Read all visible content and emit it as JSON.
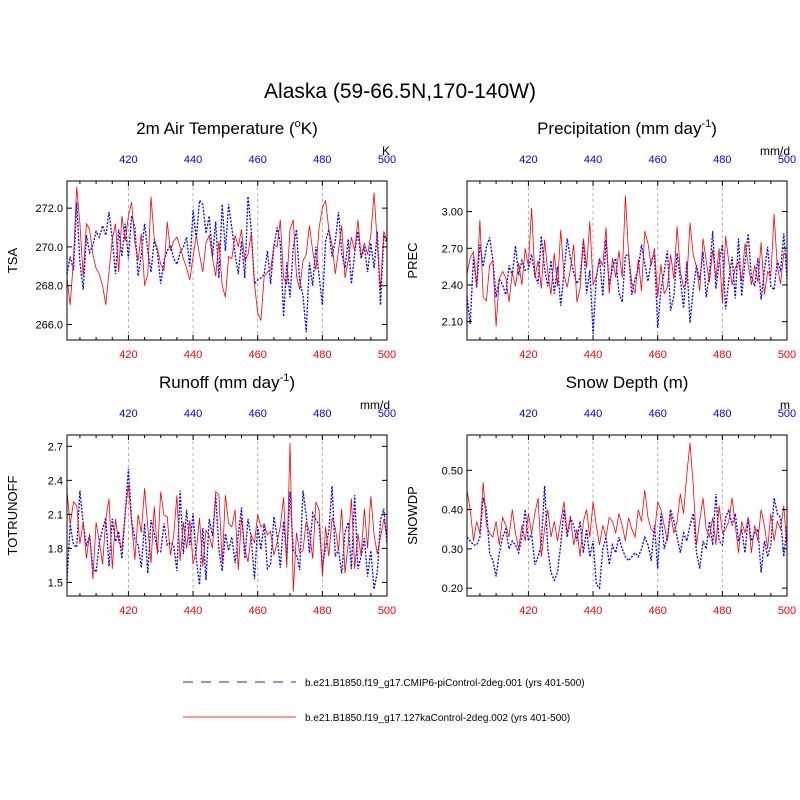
{
  "figure_title": "Alaska (59-66.5N,170-140W)",
  "colors": {
    "series_a": "#0000ff",
    "series_b": "#ff0000",
    "grid": "#a0a0a0",
    "axis": "#000000"
  },
  "legend": {
    "a": "b.e21.B1850.f19_g17.CMIP6-piControl-2deg.001 (yrs 401-500)",
    "b": "b.e21.B1850.f19_g17.127kaControl-2deg.002 (yrs 401-500)"
  },
  "chart_data": [
    {
      "type": "line",
      "title": "2m Air Temperature (",
      "title_sup": "o",
      "title_post": "K)",
      "ylabel": "TSA",
      "top_unit": "K",
      "xlim": [
        401,
        500
      ],
      "ylim": [
        265.2,
        273.4
      ],
      "yticks": [
        266.0,
        268.0,
        270.0,
        272.0
      ],
      "ytick_labels": [
        "266.0",
        "268.0",
        "270.0",
        "272.0"
      ],
      "xticks": [
        420,
        440,
        460,
        480,
        500
      ],
      "xtick_labels": [
        "420",
        "440",
        "460",
        "480",
        "500"
      ],
      "series": [
        {
          "name": "b.e21.B1850.f19_g17.CMIP6-piControl-2deg.001 (yrs 401-500)",
          "color": "#0000ff",
          "style": "dotted",
          "values": [
            268.6,
            269.5,
            268.8,
            272.3,
            269.2,
            267.8,
            270.6,
            269.7,
            270.1,
            270.8,
            270.5,
            271.1,
            270.6,
            271.8,
            270.4,
            268.6,
            270.9,
            269.5,
            271.2,
            269.4,
            271.6,
            271.0,
            268.5,
            269.6,
            271.2,
            269.8,
            268.7,
            270.4,
            269.7,
            268.1,
            269.3,
            269.8,
            270.1,
            269.4,
            269.1,
            269.7,
            270.0,
            270.5,
            269.0,
            271.9,
            270.4,
            272.4,
            272.2,
            270.7,
            271.6,
            269.5,
            271.3,
            268.4,
            272.2,
            269.8,
            272.2,
            271.0,
            269.6,
            268.6,
            270.3,
            268.4,
            272.6,
            270.9,
            268.1,
            268.3,
            268.4,
            268.6,
            269.8,
            268.1,
            270.0,
            271.0,
            270.2,
            266.4,
            269.2,
            267.4,
            270.0,
            270.9,
            268.2,
            267.5,
            265.6,
            269.2,
            268.0,
            270.0,
            268.5,
            267.0,
            270.3,
            270.9,
            269.5,
            270.3,
            271.8,
            269.7,
            268.9,
            270.4,
            268.1,
            269.7,
            270.8,
            269.4,
            270.0,
            268.7,
            270.2,
            268.9,
            270.8,
            267.0,
            270.6,
            270.2
          ]
        },
        {
          "name": "b.e21.B1850.f19_g17.127kaControl-2deg.002 (yrs 401-500)",
          "color": "#ff0000",
          "style": "solid",
          "values": [
            268.4,
            267.0,
            269.4,
            273.1,
            271.2,
            268.5,
            271.2,
            270.9,
            269.6,
            268.9,
            268.6,
            268.0,
            267.0,
            268.7,
            270.4,
            271.2,
            268.7,
            271.6,
            270.3,
            271.6,
            272.3,
            270.2,
            269.3,
            270.7,
            268.0,
            268.6,
            272.6,
            270.4,
            269.9,
            269.1,
            268.8,
            271.3,
            269.8,
            270.3,
            270.5,
            270.0,
            269.4,
            268.9,
            268.3,
            269.5,
            270.6,
            269.6,
            268.7,
            270.2,
            270.6,
            269.4,
            268.5,
            270.3,
            268.0,
            267.4,
            269.5,
            269.4,
            270.6,
            270.0,
            270.9,
            269.3,
            269.6,
            270.7,
            268.1,
            266.6,
            266.2,
            268.5,
            268.7,
            268.8,
            270.1,
            270.0,
            271.4,
            268.4,
            268.1,
            270.9,
            271.4,
            268.5,
            267.8,
            269.3,
            269.6,
            271.1,
            269.8,
            268.8,
            271.0,
            272.0,
            272.4,
            270.9,
            270.1,
            268.6,
            269.8,
            271.1,
            268.4,
            269.3,
            270.5,
            269.8,
            271.4,
            269.5,
            270.2,
            269.6,
            270.6,
            272.8,
            270.1,
            267.8,
            270.8,
            270.3
          ]
        }
      ]
    },
    {
      "type": "line",
      "title": "Precipitation (mm day",
      "title_sup": "-1",
      "title_post": ")",
      "ylabel": "PREC",
      "top_unit": "mm/d",
      "xlim": [
        401,
        500
      ],
      "ylim": [
        1.95,
        3.25
      ],
      "yticks": [
        2.1,
        2.4,
        2.7,
        3.0
      ],
      "ytick_labels": [
        "2.10",
        "2.40",
        "2.70",
        "3.00"
      ],
      "xticks": [
        420,
        440,
        460,
        480,
        500
      ],
      "xtick_labels": [
        "420",
        "440",
        "460",
        "480",
        "500"
      ],
      "series": [
        {
          "name": "b.e21.B1850.f19_g17.CMIP6-piControl-2deg.001 (yrs 401-500)",
          "color": "#0000ff",
          "style": "dotted",
          "values": [
            2.31,
            2.08,
            2.63,
            2.38,
            2.73,
            2.55,
            2.71,
            2.79,
            2.6,
            2.3,
            2.45,
            2.4,
            2.32,
            2.56,
            2.48,
            2.72,
            2.48,
            2.6,
            2.52,
            2.53,
            2.65,
            2.48,
            2.41,
            2.8,
            2.53,
            2.39,
            2.6,
            2.33,
            2.55,
            2.23,
            2.5,
            2.78,
            2.62,
            2.5,
            2.41,
            2.46,
            2.76,
            2.33,
            2.52,
            2.0,
            2.46,
            2.62,
            2.31,
            2.77,
            2.4,
            2.54,
            2.62,
            2.34,
            2.26,
            2.64,
            2.65,
            2.32,
            2.45,
            2.53,
            2.73,
            2.57,
            2.43,
            2.6,
            2.64,
            2.05,
            2.36,
            2.51,
            2.68,
            2.19,
            2.31,
            2.66,
            2.45,
            2.21,
            2.59,
            2.09,
            2.37,
            2.56,
            2.44,
            2.67,
            2.3,
            2.49,
            2.84,
            2.37,
            2.58,
            2.73,
            2.2,
            2.44,
            2.63,
            2.29,
            2.78,
            2.31,
            2.59,
            2.82,
            2.46,
            2.39,
            2.62,
            2.28,
            2.52,
            2.71,
            2.39,
            2.36,
            2.6,
            2.51,
            2.82,
            2.45
          ]
        },
        {
          "name": "b.e21.B1850.f19_g17.127kaControl-2deg.002 (yrs 401-500)",
          "color": "#ff0000",
          "style": "solid",
          "values": [
            2.49,
            2.62,
            2.67,
            2.39,
            2.93,
            2.3,
            2.27,
            2.56,
            2.6,
            2.06,
            2.45,
            2.51,
            2.46,
            2.26,
            2.5,
            2.39,
            2.58,
            2.4,
            2.7,
            2.55,
            3.03,
            2.46,
            2.6,
            2.37,
            2.77,
            2.5,
            2.32,
            2.66,
            2.39,
            2.85,
            2.48,
            2.38,
            2.53,
            2.73,
            2.26,
            2.37,
            2.78,
            2.54,
            2.92,
            2.4,
            2.47,
            2.61,
            2.56,
            2.87,
            2.33,
            2.62,
            2.46,
            2.68,
            2.46,
            3.13,
            2.65,
            2.42,
            2.33,
            2.61,
            2.35,
            2.84,
            2.74,
            2.56,
            2.7,
            2.3,
            2.57,
            2.33,
            2.38,
            2.65,
            2.45,
            2.88,
            2.51,
            2.38,
            2.43,
            2.91,
            2.64,
            2.55,
            2.35,
            2.78,
            2.6,
            2.42,
            2.69,
            2.45,
            2.7,
            2.25,
            2.8,
            2.59,
            2.4,
            2.54,
            2.59,
            2.43,
            2.74,
            2.57,
            2.4,
            2.56,
            2.42,
            2.75,
            2.32,
            2.51,
            2.47,
            2.98,
            2.55,
            2.41,
            2.66,
            2.63
          ]
        }
      ]
    },
    {
      "type": "line",
      "title": "Runoff (mm day",
      "title_sup": "-1",
      "title_post": ")",
      "ylabel": "TOTRUNOFF",
      "top_unit": "mm/d",
      "xlim": [
        401,
        500
      ],
      "ylim": [
        1.38,
        2.8
      ],
      "yticks": [
        1.5,
        1.8,
        2.1,
        2.4,
        2.7
      ],
      "ytick_labels": [
        "1.5",
        "1.8",
        "2.1",
        "2.4",
        "2.7"
      ],
      "xticks": [
        420,
        440,
        460,
        480,
        500
      ],
      "xtick_labels": [
        "420",
        "440",
        "460",
        "480",
        "500"
      ],
      "series": [
        {
          "name": "b.e21.B1850.f19_g17.CMIP6-piControl-2deg.001 (yrs 401-500)",
          "color": "#0000ff",
          "style": "dotted",
          "values": [
            1.52,
            2.01,
            1.83,
            1.81,
            2.31,
            2.02,
            1.82,
            1.91,
            1.63,
            1.59,
            1.85,
            1.97,
            2.07,
            1.64,
            2.06,
            1.86,
            1.95,
            1.71,
            2.1,
            2.5,
            2.05,
            1.88,
            1.83,
            1.63,
            2.02,
            1.58,
            2.05,
            1.93,
            1.78,
            1.77,
            2.02,
            1.83,
            1.85,
            1.83,
            1.6,
            2.31,
            1.75,
            2.14,
            1.83,
            2.11,
            1.7,
            1.48,
            1.98,
            1.52,
            2.06,
            1.91,
            2.27,
            1.79,
            1.6,
            1.93,
            1.78,
            1.9,
            1.67,
            1.92,
            2.16,
            1.71,
            2.06,
            1.89,
            1.53,
            1.99,
            1.79,
            2.02,
            1.62,
            1.66,
            2.08,
            1.91,
            1.63,
            2.04,
            1.71,
            2.3,
            1.78,
            1.75,
            1.61,
            2.31,
            2.09,
            1.76,
            2.11,
            2.05,
            2.01,
            1.63,
            1.81,
            1.95,
            2.35,
            1.73,
            1.79,
            1.58,
            1.94,
            2.03,
            1.62,
            2.27,
            1.62,
            1.73,
            1.89,
            1.55,
            1.78,
            1.44,
            1.59,
            2.05,
            2.15,
            1.84
          ]
        },
        {
          "name": "b.e21.B1850.f19_g17.127kaControl-2deg.002 (yrs 401-500)",
          "color": "#ff0000",
          "style": "solid",
          "values": [
            2.3,
            2.01,
            2.21,
            2.18,
            1.84,
            2.03,
            1.71,
            1.93,
            1.53,
            2.03,
            1.86,
            1.66,
            2.06,
            2.24,
            1.62,
            2.06,
            1.86,
            1.8,
            2.11,
            2.36,
            2.03,
            1.7,
            2.1,
            1.94,
            2.33,
            1.99,
            1.67,
            2.17,
            1.75,
            2.3,
            2.09,
            2.08,
            1.74,
            1.91,
            2.27,
            1.69,
            2.03,
            1.8,
            2.05,
            1.66,
            1.78,
            2.07,
            1.64,
            1.96,
            1.91,
            1.8,
            2.3,
            2.27,
            1.67,
            2.27,
            2.02,
            1.99,
            2.14,
            1.61,
            2.07,
            1.79,
            1.68,
            1.92,
            1.85,
            2.1,
            1.99,
            2.01,
            1.92,
            1.95,
            1.74,
            1.85,
            1.99,
            2.25,
            1.63,
            2.73,
            1.42,
            1.94,
            1.76,
            1.78,
            2.04,
            1.95,
            1.71,
            2.21,
            2.14,
            1.55,
            1.99,
            1.73,
            2.07,
            1.98,
            1.78,
            2.15,
            1.58,
            1.84,
            2.24,
            1.62,
            1.93,
            1.73,
            2.15,
            1.8,
            2.26,
            1.92,
            1.75,
            1.9,
            2.06,
            1.91
          ]
        }
      ]
    },
    {
      "type": "line",
      "title": "Snow Depth (m)",
      "title_sup": "",
      "title_post": "",
      "ylabel": "SNOWDP",
      "top_unit": "m",
      "xlim": [
        401,
        500
      ],
      "ylim": [
        0.18,
        0.59
      ],
      "yticks": [
        0.2,
        0.3,
        0.4,
        0.5
      ],
      "ytick_labels": [
        "0.20",
        "0.30",
        "0.40",
        "0.50"
      ],
      "xticks": [
        420,
        440,
        460,
        480,
        500
      ],
      "xtick_labels": [
        "420",
        "440",
        "460",
        "480",
        "500"
      ],
      "series": [
        {
          "name": "b.e21.B1850.f19_g17.CMIP6-piControl-2deg.001 (yrs 401-500)",
          "color": "#0000ff",
          "style": "dotted",
          "values": [
            0.33,
            0.32,
            0.31,
            0.31,
            0.33,
            0.43,
            0.4,
            0.29,
            0.27,
            0.23,
            0.29,
            0.33,
            0.35,
            0.3,
            0.32,
            0.31,
            0.29,
            0.33,
            0.4,
            0.32,
            0.34,
            0.26,
            0.28,
            0.31,
            0.46,
            0.3,
            0.24,
            0.22,
            0.24,
            0.31,
            0.4,
            0.33,
            0.38,
            0.36,
            0.32,
            0.37,
            0.29,
            0.35,
            0.28,
            0.32,
            0.21,
            0.2,
            0.3,
            0.33,
            0.26,
            0.31,
            0.29,
            0.33,
            0.3,
            0.28,
            0.27,
            0.28,
            0.29,
            0.28,
            0.3,
            0.33,
            0.31,
            0.27,
            0.36,
            0.25,
            0.39,
            0.3,
            0.33,
            0.4,
            0.37,
            0.33,
            0.29,
            0.34,
            0.32,
            0.36,
            0.39,
            0.29,
            0.25,
            0.32,
            0.3,
            0.37,
            0.31,
            0.44,
            0.32,
            0.31,
            0.38,
            0.4,
            0.36,
            0.39,
            0.32,
            0.35,
            0.29,
            0.38,
            0.32,
            0.34,
            0.35,
            0.24,
            0.32,
            0.28,
            0.31,
            0.43,
            0.39,
            0.38,
            0.28,
            0.36
          ]
        },
        {
          "name": "b.e21.B1850.f19_g17.127kaControl-2deg.002 (yrs 401-500)",
          "color": "#ff0000",
          "style": "solid",
          "values": [
            0.45,
            0.4,
            0.32,
            0.37,
            0.34,
            0.47,
            0.36,
            0.34,
            0.33,
            0.37,
            0.31,
            0.38,
            0.36,
            0.33,
            0.4,
            0.34,
            0.3,
            0.36,
            0.32,
            0.39,
            0.34,
            0.39,
            0.43,
            0.28,
            0.35,
            0.4,
            0.33,
            0.37,
            0.32,
            0.37,
            0.42,
            0.34,
            0.38,
            0.31,
            0.35,
            0.28,
            0.37,
            0.4,
            0.33,
            0.42,
            0.36,
            0.31,
            0.36,
            0.33,
            0.38,
            0.37,
            0.34,
            0.39,
            0.36,
            0.32,
            0.38,
            0.35,
            0.33,
            0.4,
            0.37,
            0.45,
            0.38,
            0.35,
            0.34,
            0.42,
            0.4,
            0.36,
            0.32,
            0.39,
            0.34,
            0.37,
            0.44,
            0.39,
            0.49,
            0.57,
            0.46,
            0.31,
            0.37,
            0.43,
            0.35,
            0.33,
            0.38,
            0.31,
            0.41,
            0.34,
            0.35,
            0.37,
            0.43,
            0.36,
            0.29,
            0.37,
            0.34,
            0.38,
            0.29,
            0.36,
            0.32,
            0.4,
            0.36,
            0.3,
            0.39,
            0.32,
            0.37,
            0.35,
            0.41,
            0.3
          ]
        }
      ]
    }
  ]
}
